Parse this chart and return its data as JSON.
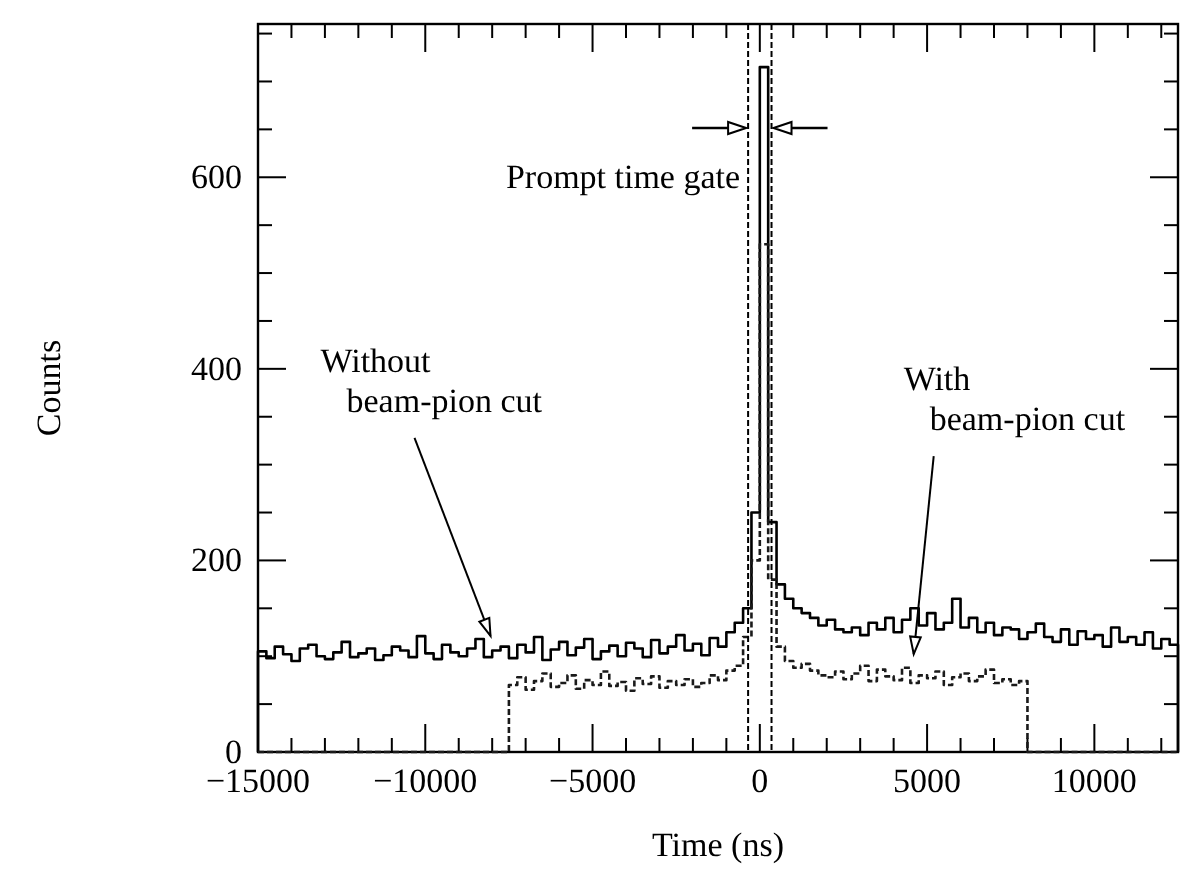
{
  "chart_data": {
    "type": "histogram",
    "xlabel": "Time (ns)",
    "ylabel": "Counts",
    "xlim": [
      -15000,
      12500
    ],
    "ylim": [
      0,
      760
    ],
    "xticks": [
      {
        "value": -15000,
        "label": "−15000"
      },
      {
        "value": -14000,
        "label": null
      },
      {
        "value": -13000,
        "label": null
      },
      {
        "value": -12000,
        "label": null
      },
      {
        "value": -11000,
        "label": null
      },
      {
        "value": -10000,
        "label": "−10000"
      },
      {
        "value": -9000,
        "label": null
      },
      {
        "value": -8000,
        "label": null
      },
      {
        "value": -7000,
        "label": null
      },
      {
        "value": -6000,
        "label": null
      },
      {
        "value": -5000,
        "label": "−5000"
      },
      {
        "value": -4000,
        "label": null
      },
      {
        "value": -3000,
        "label": null
      },
      {
        "value": -2000,
        "label": null
      },
      {
        "value": -1000,
        "label": null
      },
      0,
      {
        "value": 1000,
        "label": null
      },
      {
        "value": 2000,
        "label": null
      },
      {
        "value": 3000,
        "label": null
      },
      {
        "value": 4000,
        "label": null
      },
      5000,
      {
        "value": 6000,
        "label": null
      },
      {
        "value": 7000,
        "label": null
      },
      {
        "value": 8000,
        "label": null
      },
      {
        "value": 9000,
        "label": null
      },
      10000,
      {
        "value": 11000,
        "label": null
      },
      {
        "value": 12000,
        "label": null
      }
    ],
    "yticks": [
      0,
      {
        "value": 50,
        "label": null
      },
      {
        "value": 100,
        "label": null
      },
      {
        "value": 150,
        "label": null
      },
      200,
      {
        "value": 250,
        "label": null
      },
      {
        "value": 300,
        "label": null
      },
      {
        "value": 350,
        "label": null
      },
      400,
      {
        "value": 450,
        "label": null
      },
      {
        "value": 500,
        "label": null
      },
      {
        "value": 550,
        "label": null
      },
      600,
      {
        "value": 650,
        "label": null
      },
      {
        "value": 700,
        "label": null
      },
      {
        "value": 750,
        "label": null
      }
    ],
    "bins": [
      -15000,
      -14750,
      -14500,
      -14250,
      -14000,
      -13750,
      -13500,
      -13250,
      -13000,
      -12750,
      -12500,
      -12250,
      -12000,
      -11750,
      -11500,
      -11250,
      -11000,
      -10750,
      -10500,
      -10250,
      -10000,
      -9750,
      -9500,
      -9250,
      -9000,
      -8750,
      -8500,
      -8250,
      -8000,
      -7750,
      -7500,
      -7250,
      -7000,
      -6750,
      -6500,
      -6250,
      -6000,
      -5750,
      -5500,
      -5250,
      -5000,
      -4750,
      -4500,
      -4250,
      -4000,
      -3750,
      -3500,
      -3250,
      -3000,
      -2750,
      -2500,
      -2250,
      -2000,
      -1750,
      -1500,
      -1250,
      -1000,
      -750,
      -500,
      -250,
      0,
      250,
      500,
      750,
      1000,
      1250,
      1500,
      1750,
      2000,
      2250,
      2500,
      2750,
      3000,
      3250,
      3500,
      3750,
      4000,
      4250,
      4500,
      4750,
      5000,
      5250,
      5500,
      5750,
      6000,
      6250,
      6500,
      6750,
      7000,
      7250,
      7500,
      7750,
      8000,
      8250,
      8500,
      8750,
      9000,
      9250,
      9500,
      9750,
      10000,
      10250,
      10500,
      10750,
      11000,
      11250,
      11500,
      11750,
      12000,
      12250,
      12500
    ],
    "series": [
      {
        "color": "#000000",
        "line_style": "solid",
        "values": [
          105,
          98,
          110,
          102,
          95,
          108,
          112,
          100,
          97,
          104,
          115,
          99,
          103,
          108,
          96,
          101,
          110,
          106,
          99,
          121,
          103,
          97,
          112,
          104,
          100,
          108,
          118,
          99,
          106,
          110,
          98,
          112,
          104,
          120,
          96,
          107,
          115,
          101,
          109,
          118,
          97,
          105,
          111,
          100,
          114,
          108,
          99,
          117,
          103,
          110,
          122,
          106,
          113,
          101,
          119,
          110,
          125,
          135,
          150,
          250,
          715,
          240,
          175,
          160,
          150,
          145,
          140,
          132,
          138,
          128,
          125,
          130,
          122,
          135,
          128,
          140,
          125,
          138,
          150,
          132,
          145,
          128,
          135,
          160,
          130,
          140,
          125,
          135,
          122,
          130,
          128,
          118,
          125,
          134,
          120,
          115,
          128,
          112,
          126,
          118,
          122,
          110,
          130,
          115,
          120,
          112,
          125,
          108,
          118,
          112
        ]
      },
      {
        "color": "#1a1a1a",
        "line_style": "dashed",
        "values": [
          0,
          0,
          0,
          0,
          0,
          0,
          0,
          0,
          0,
          0,
          0,
          0,
          0,
          0,
          0,
          0,
          0,
          0,
          0,
          0,
          0,
          0,
          0,
          0,
          0,
          0,
          0,
          0,
          0,
          0,
          70,
          78,
          65,
          74,
          82,
          68,
          72,
          80,
          66,
          75,
          70,
          84,
          69,
          73,
          64,
          77,
          71,
          79,
          67,
          74,
          70,
          76,
          68,
          72,
          80,
          75,
          85,
          90,
          120,
          200,
          530,
          180,
          110,
          95,
          88,
          92,
          85,
          80,
          78,
          84,
          76,
          82,
          90,
          74,
          86,
          79,
          75,
          88,
          72,
          80,
          77,
          84,
          70,
          78,
          82,
          74,
          79,
          86,
          72,
          76,
          70,
          74,
          0,
          0,
          0,
          0,
          0,
          0,
          0,
          0,
          0,
          0,
          0,
          0,
          0,
          0,
          0,
          0,
          0,
          0
        ]
      }
    ],
    "ref_lines": [
      {
        "axis": "x",
        "value": -350,
        "label": "Prompt time gate",
        "line_style": "dashed"
      },
      {
        "axis": "x",
        "value": 350,
        "line_style": "dashed"
      }
    ],
    "annotations": [
      {
        "text": "Without\nbeam-pion cut",
        "x": -8050,
        "y": 115
      },
      {
        "text": "With\nbeam-pion cut",
        "x": 4600,
        "y": 96
      }
    ]
  }
}
